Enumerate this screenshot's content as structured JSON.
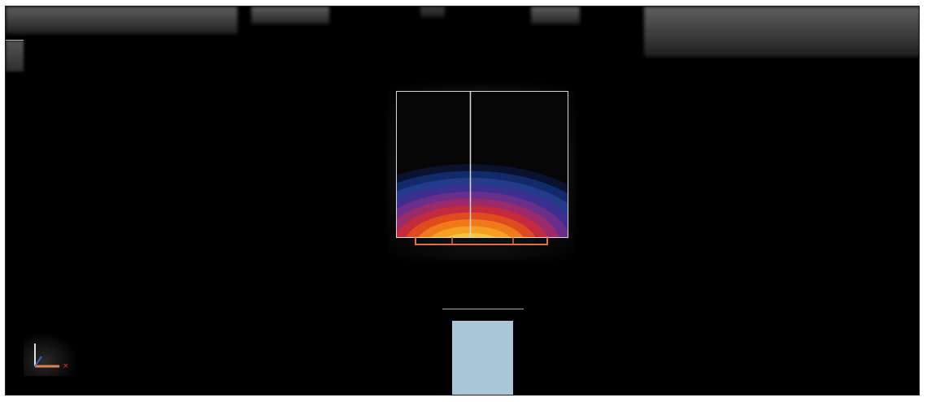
{
  "window": {
    "background": "#000000"
  },
  "toolbar": {
    "visible_text": "",
    "panels": [
      "toolbar-left",
      "toolbar-center-1",
      "toolbar-center-2",
      "toolbar-center-3",
      "toolbar-right"
    ]
  },
  "viewport": {
    "content": "contour-plot",
    "frame_color": "#d8d8d8",
    "divider_color": "#d8d8d8",
    "support_color": "#e07040",
    "contour_colors": [
      "#0b1230",
      "#132a6a",
      "#243a8a",
      "#3d2f8f",
      "#6b2f8a",
      "#9b2a6a",
      "#c42a3d",
      "#e04a1f",
      "#f07a1a",
      "#f5a020",
      "#f8c23a"
    ]
  },
  "axis_triad": {
    "icon": "axis-triad-icon",
    "x_color": "#e03030",
    "y_color": "#4060d0",
    "z_color": "#e0e0e0"
  },
  "swatch": {
    "color": "#a9c7d6"
  }
}
